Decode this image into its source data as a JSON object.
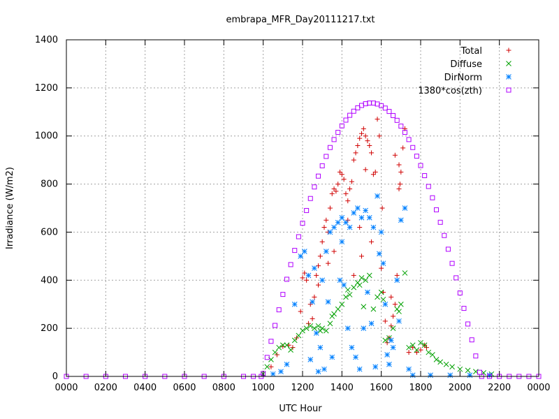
{
  "chart_data": {
    "type": "scatter",
    "title": "embrapa_MFR_Day20111217.txt",
    "xlabel": "UTC Hour",
    "ylabel": "Irradiance (W/m2)",
    "xlim": [
      0,
      24
    ],
    "ylim": [
      0,
      1400
    ],
    "grid": true,
    "legend_placement": "top-right",
    "x_ticks": [
      {
        "value": 0,
        "label": "0000"
      },
      {
        "value": 2,
        "label": "0200"
      },
      {
        "value": 4,
        "label": "0400"
      },
      {
        "value": 6,
        "label": "0600"
      },
      {
        "value": 8,
        "label": "0800"
      },
      {
        "value": 10,
        "label": "1000"
      },
      {
        "value": 12,
        "label": "1200"
      },
      {
        "value": 14,
        "label": "1400"
      },
      {
        "value": 16,
        "label": "1600"
      },
      {
        "value": 18,
        "label": "1800"
      },
      {
        "value": 20,
        "label": "2000"
      },
      {
        "value": 22,
        "label": "2200"
      },
      {
        "value": 24,
        "label": "0000"
      }
    ],
    "y_ticks": [
      0,
      200,
      400,
      600,
      800,
      1000,
      1200,
      1400
    ],
    "series": [
      {
        "name": "Total",
        "marker": "plus",
        "color": "#d00000",
        "points": [
          [
            10.4,
            40
          ],
          [
            10.7,
            90
          ],
          [
            11.0,
            125
          ],
          [
            11.3,
            130
          ],
          [
            11.5,
            120
          ],
          [
            11.7,
            160
          ],
          [
            11.9,
            270
          ],
          [
            12.0,
            410
          ],
          [
            12.1,
            430
          ],
          [
            12.2,
            400
          ],
          [
            12.4,
            300
          ],
          [
            12.5,
            240
          ],
          [
            12.6,
            330
          ],
          [
            12.7,
            420
          ],
          [
            12.8,
            460
          ],
          [
            12.9,
            500
          ],
          [
            13.0,
            560
          ],
          [
            13.1,
            620
          ],
          [
            13.2,
            650
          ],
          [
            13.3,
            600
          ],
          [
            13.4,
            700
          ],
          [
            13.5,
            760
          ],
          [
            13.6,
            780
          ],
          [
            13.7,
            770
          ],
          [
            13.8,
            800
          ],
          [
            13.9,
            850
          ],
          [
            14.0,
            840
          ],
          [
            14.1,
            820
          ],
          [
            14.2,
            760
          ],
          [
            14.3,
            730
          ],
          [
            14.4,
            780
          ],
          [
            14.5,
            810
          ],
          [
            14.6,
            900
          ],
          [
            14.7,
            930
          ],
          [
            14.8,
            960
          ],
          [
            14.9,
            990
          ],
          [
            15.0,
            1010
          ],
          [
            15.1,
            1030
          ],
          [
            15.2,
            1000
          ],
          [
            15.3,
            980
          ],
          [
            15.4,
            960
          ],
          [
            15.5,
            930
          ],
          [
            15.6,
            840
          ],
          [
            15.7,
            850
          ],
          [
            15.8,
            1070
          ],
          [
            15.9,
            1000
          ],
          [
            16.0,
            450
          ],
          [
            16.1,
            350
          ],
          [
            16.2,
            230
          ],
          [
            16.3,
            140
          ],
          [
            16.4,
            160
          ],
          [
            16.5,
            210
          ],
          [
            16.6,
            250
          ],
          [
            16.7,
            300
          ],
          [
            16.8,
            420
          ],
          [
            16.9,
            780
          ],
          [
            17.0,
            850
          ],
          [
            17.1,
            950
          ],
          [
            17.2,
            1030
          ],
          [
            17.4,
            100
          ],
          [
            17.6,
            120
          ],
          [
            17.8,
            100
          ],
          [
            18.0,
            110
          ],
          [
            18.2,
            130
          ],
          [
            18.3,
            120
          ],
          [
            15.0,
            500
          ],
          [
            14.6,
            420
          ],
          [
            13.3,
            470
          ],
          [
            12.8,
            380
          ],
          [
            15.5,
            560
          ],
          [
            16.05,
            700
          ],
          [
            16.9,
            880
          ],
          [
            16.7,
            920
          ],
          [
            12.3,
            220
          ],
          [
            13.6,
            520
          ],
          [
            14.9,
            620
          ],
          [
            16.5,
            330
          ],
          [
            16.95,
            800
          ],
          [
            14.3,
            650
          ],
          [
            15.2,
            860
          ]
        ]
      },
      {
        "name": "Diffuse",
        "marker": "cross",
        "color": "#00a000",
        "points": [
          [
            10.0,
            10
          ],
          [
            10.2,
            40
          ],
          [
            10.4,
            70
          ],
          [
            10.6,
            100
          ],
          [
            10.8,
            120
          ],
          [
            11.0,
            130
          ],
          [
            11.2,
            130
          ],
          [
            11.4,
            110
          ],
          [
            11.6,
            150
          ],
          [
            11.8,
            170
          ],
          [
            12.0,
            190
          ],
          [
            12.2,
            200
          ],
          [
            12.4,
            210
          ],
          [
            12.6,
            200
          ],
          [
            12.8,
            210
          ],
          [
            13.0,
            200
          ],
          [
            13.2,
            190
          ],
          [
            13.4,
            220
          ],
          [
            13.6,
            260
          ],
          [
            13.8,
            280
          ],
          [
            14.0,
            300
          ],
          [
            14.2,
            330
          ],
          [
            14.4,
            340
          ],
          [
            14.6,
            370
          ],
          [
            14.8,
            390
          ],
          [
            15.0,
            410
          ],
          [
            15.2,
            400
          ],
          [
            15.4,
            420
          ],
          [
            15.6,
            280
          ],
          [
            15.8,
            330
          ],
          [
            16.0,
            350
          ],
          [
            16.2,
            150
          ],
          [
            16.4,
            160
          ],
          [
            16.6,
            200
          ],
          [
            16.8,
            280
          ],
          [
            17.0,
            300
          ],
          [
            17.2,
            430
          ],
          [
            17.4,
            120
          ],
          [
            17.6,
            130
          ],
          [
            17.8,
            110
          ],
          [
            18.0,
            140
          ],
          [
            18.2,
            130
          ],
          [
            18.4,
            100
          ],
          [
            18.6,
            90
          ],
          [
            18.8,
            70
          ],
          [
            19.0,
            60
          ],
          [
            19.3,
            50
          ],
          [
            19.6,
            40
          ],
          [
            20.0,
            30
          ],
          [
            20.4,
            25
          ],
          [
            20.8,
            20
          ],
          [
            21.2,
            15
          ],
          [
            21.6,
            10
          ],
          [
            13.5,
            250
          ],
          [
            14.3,
            360
          ],
          [
            15.1,
            290
          ],
          [
            16.1,
            320
          ],
          [
            12.9,
            190
          ],
          [
            14.9,
            380
          ],
          [
            16.9,
            270
          ]
        ]
      },
      {
        "name": "DirNorm",
        "marker": "star",
        "color": "#0080ff",
        "points": [
          [
            10.5,
            10
          ],
          [
            10.9,
            20
          ],
          [
            11.2,
            50
          ],
          [
            11.6,
            300
          ],
          [
            11.9,
            500
          ],
          [
            12.1,
            520
          ],
          [
            12.3,
            420
          ],
          [
            12.5,
            310
          ],
          [
            12.7,
            180
          ],
          [
            12.9,
            120
          ],
          [
            13.0,
            400
          ],
          [
            13.2,
            520
          ],
          [
            13.4,
            600
          ],
          [
            13.6,
            620
          ],
          [
            13.8,
            640
          ],
          [
            14.0,
            660
          ],
          [
            14.2,
            640
          ],
          [
            14.4,
            620
          ],
          [
            14.6,
            680
          ],
          [
            14.8,
            700
          ],
          [
            15.0,
            660
          ],
          [
            15.2,
            690
          ],
          [
            15.4,
            660
          ],
          [
            15.6,
            620
          ],
          [
            15.8,
            750
          ],
          [
            16.0,
            600
          ],
          [
            16.2,
            300
          ],
          [
            16.4,
            50
          ],
          [
            16.6,
            120
          ],
          [
            16.8,
            400
          ],
          [
            17.0,
            650
          ],
          [
            17.2,
            700
          ],
          [
            17.4,
            30
          ],
          [
            12.4,
            70
          ],
          [
            12.8,
            20
          ],
          [
            13.1,
            30
          ],
          [
            13.5,
            80
          ],
          [
            13.9,
            400
          ],
          [
            14.1,
            380
          ],
          [
            14.3,
            200
          ],
          [
            14.5,
            120
          ],
          [
            14.7,
            80
          ],
          [
            14.9,
            30
          ],
          [
            15.1,
            200
          ],
          [
            15.3,
            350
          ],
          [
            15.5,
            220
          ],
          [
            15.7,
            40
          ],
          [
            16.1,
            470
          ],
          [
            16.5,
            150
          ],
          [
            16.9,
            230
          ],
          [
            17.6,
            5
          ],
          [
            18.5,
            5
          ],
          [
            19.5,
            5
          ],
          [
            20.5,
            5
          ],
          [
            21.5,
            5
          ],
          [
            13.3,
            310
          ],
          [
            15.9,
            510
          ],
          [
            16.3,
            90
          ],
          [
            12.6,
            450
          ],
          [
            14.0,
            560
          ]
        ]
      },
      {
        "name": "1380*cos(zth)",
        "marker": "square",
        "color": "#b000ff",
        "points": [
          [
            0,
            0
          ],
          [
            1,
            0
          ],
          [
            2,
            0
          ],
          [
            3,
            0
          ],
          [
            4,
            0
          ],
          [
            5,
            0
          ],
          [
            6,
            0
          ],
          [
            7,
            0
          ],
          [
            8,
            0
          ],
          [
            9,
            0
          ],
          [
            9.5,
            0
          ],
          [
            9.9,
            0
          ],
          [
            10.0,
            12
          ],
          [
            10.2,
            79
          ],
          [
            10.4,
            146
          ],
          [
            10.6,
            212
          ],
          [
            10.8,
            277
          ],
          [
            11.0,
            341
          ],
          [
            11.2,
            404
          ],
          [
            11.4,
            465
          ],
          [
            11.6,
            524
          ],
          [
            11.8,
            581
          ],
          [
            12.0,
            637
          ],
          [
            12.2,
            690
          ],
          [
            12.4,
            740
          ],
          [
            12.6,
            788
          ],
          [
            12.8,
            833
          ],
          [
            13.0,
            876
          ],
          [
            13.2,
            915
          ],
          [
            13.4,
            952
          ],
          [
            13.6,
            985
          ],
          [
            13.8,
            1015
          ],
          [
            14.0,
            1042
          ],
          [
            14.2,
            1066
          ],
          [
            14.4,
            1086
          ],
          [
            14.6,
            1103
          ],
          [
            14.8,
            1117
          ],
          [
            15.0,
            1127
          ],
          [
            15.2,
            1134
          ],
          [
            15.4,
            1137
          ],
          [
            15.6,
            1137
          ],
          [
            15.8,
            1133
          ],
          [
            16.0,
            1126
          ],
          [
            16.2,
            1116
          ],
          [
            16.4,
            1102
          ],
          [
            16.6,
            1085
          ],
          [
            16.8,
            1065
          ],
          [
            17.0,
            1041
          ],
          [
            17.2,
            1015
          ],
          [
            17.4,
            985
          ],
          [
            17.6,
            952
          ],
          [
            17.8,
            916
          ],
          [
            18.0,
            877
          ],
          [
            18.2,
            835
          ],
          [
            18.4,
            790
          ],
          [
            18.6,
            743
          ],
          [
            18.8,
            693
          ],
          [
            19.0,
            641
          ],
          [
            19.2,
            586
          ],
          [
            19.4,
            529
          ],
          [
            19.6,
            470
          ],
          [
            19.8,
            410
          ],
          [
            20.0,
            347
          ],
          [
            20.2,
            283
          ],
          [
            20.4,
            218
          ],
          [
            20.6,
            152
          ],
          [
            20.8,
            85
          ],
          [
            21.0,
            17
          ],
          [
            21.1,
            0
          ],
          [
            21.5,
            0
          ],
          [
            22,
            0
          ],
          [
            22.5,
            0
          ],
          [
            23,
            0
          ],
          [
            23.5,
            0
          ],
          [
            24,
            0
          ]
        ]
      }
    ]
  }
}
